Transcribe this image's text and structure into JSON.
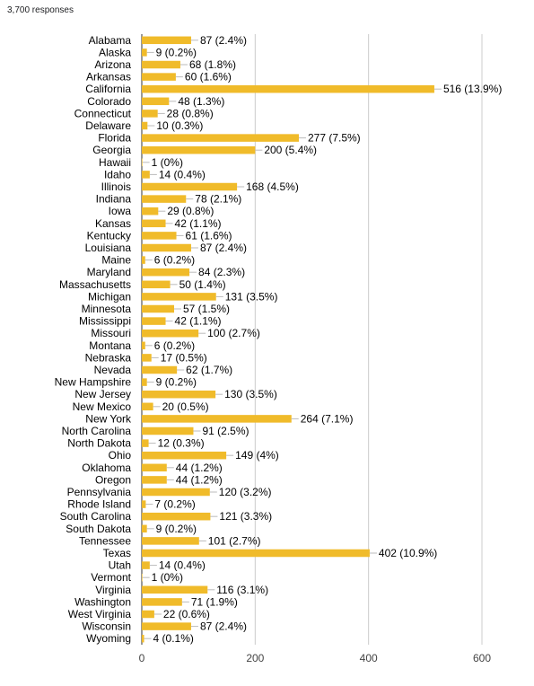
{
  "responses_label": "3,700 responses",
  "colors": {
    "bar": "#f0bb2a",
    "grid": "#cccccc",
    "axis": "#333333",
    "leader": "#bbbbbb"
  },
  "chart_data": {
    "type": "bar",
    "orientation": "horizontal",
    "xlim": [
      0,
      600
    ],
    "xticks": [
      0,
      200,
      400,
      600
    ],
    "grid": true,
    "categories": [
      "Alabama",
      "Alaska",
      "Arizona",
      "Arkansas",
      "California",
      "Colorado",
      "Connecticut",
      "Delaware",
      "Florida",
      "Georgia",
      "Hawaii",
      "Idaho",
      "Illinois",
      "Indiana",
      "Iowa",
      "Kansas",
      "Kentucky",
      "Louisiana",
      "Maine",
      "Maryland",
      "Massachusetts",
      "Michigan",
      "Minnesota",
      "Mississippi",
      "Missouri",
      "Montana",
      "Nebraska",
      "Nevada",
      "New Hampshire",
      "New Jersey",
      "New Mexico",
      "New York",
      "North Carolina",
      "North Dakota",
      "Ohio",
      "Oklahoma",
      "Oregon",
      "Pennsylvania",
      "Rhode Island",
      "South Carolina",
      "South Dakota",
      "Tennessee",
      "Texas",
      "Utah",
      "Vermont",
      "Virginia",
      "Washington",
      "West Virginia",
      "Wisconsin",
      "Wyoming"
    ],
    "values": [
      87,
      9,
      68,
      60,
      516,
      48,
      28,
      10,
      277,
      200,
      1,
      14,
      168,
      78,
      29,
      42,
      61,
      87,
      6,
      84,
      50,
      131,
      57,
      42,
      100,
      6,
      17,
      62,
      9,
      130,
      20,
      264,
      91,
      12,
      149,
      44,
      44,
      120,
      7,
      121,
      9,
      101,
      402,
      14,
      1,
      116,
      71,
      22,
      87,
      4
    ],
    "data_labels": [
      "87 (2.4%)",
      "9 (0.2%)",
      "68 (1.8%)",
      "60 (1.6%)",
      "516 (13.9%)",
      "48 (1.3%)",
      "28 (0.8%)",
      "10 (0.3%)",
      "277 (7.5%)",
      "200 (5.4%)",
      "1 (0%)",
      "14 (0.4%)",
      "168 (4.5%)",
      "78 (2.1%)",
      "29 (0.8%)",
      "42 (1.1%)",
      "61 (1.6%)",
      "87 (2.4%)",
      "6 (0.2%)",
      "84 (2.3%)",
      "50 (1.4%)",
      "131 (3.5%)",
      "57 (1.5%)",
      "42 (1.1%)",
      "100 (2.7%)",
      "6 (0.2%)",
      "17 (0.5%)",
      "62 (1.7%)",
      "9 (0.2%)",
      "130 (3.5%)",
      "20 (0.5%)",
      "264 (7.1%)",
      "91 (2.5%)",
      "12 (0.3%)",
      "149 (4%)",
      "44 (1.2%)",
      "44 (1.2%)",
      "120 (3.2%)",
      "7 (0.2%)",
      "121 (3.3%)",
      "9 (0.2%)",
      "101 (2.7%)",
      "402 (10.9%)",
      "14 (0.4%)",
      "1 (0%)",
      "116 (3.1%)",
      "71 (1.9%)",
      "22 (0.6%)",
      "87 (2.4%)",
      "4 (0.1%)"
    ]
  }
}
